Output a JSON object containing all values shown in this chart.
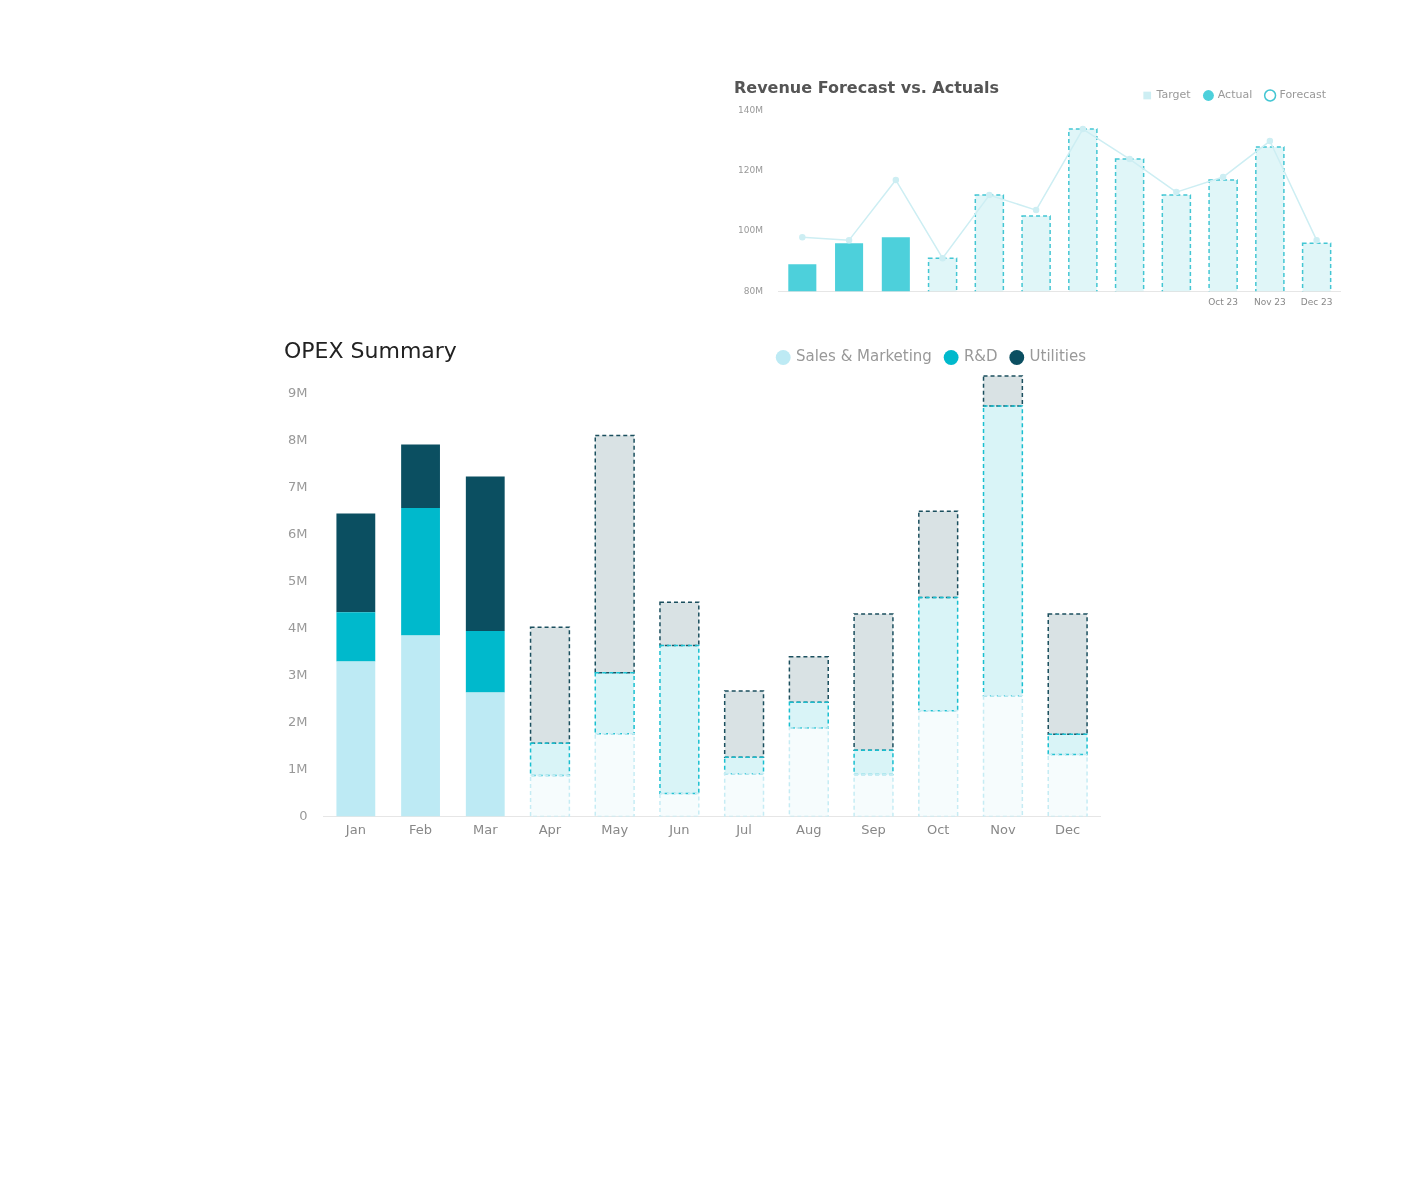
{
  "chart_data": [
    {
      "type": "bar",
      "title": "Revenue Forecast vs. Actuals",
      "categories": [
        null,
        null,
        null,
        null,
        null,
        null,
        null,
        null,
        null,
        "Oct 23",
        "Nov 23",
        "Dec 23"
      ],
      "series": [
        {
          "name": "Target",
          "type": "line",
          "color": "#cdeef3",
          "marker": "circle",
          "values": [
            98,
            97,
            117,
            91,
            112,
            107,
            134,
            124,
            113,
            118,
            130,
            97
          ]
        },
        {
          "name": "Actual",
          "color": "#4dd0db",
          "values": [
            89,
            96,
            98,
            null,
            null,
            null,
            null,
            null,
            null,
            null,
            null,
            null
          ]
        },
        {
          "name": "Forecast",
          "color": "#43c6d3",
          "line_style": "dashed",
          "values": [
            null,
            null,
            null,
            91,
            112,
            105,
            134,
            124,
            112,
            117,
            128,
            96
          ]
        }
      ],
      "ylim": [
        80,
        140
      ],
      "yticks": [
        {
          "value": 80,
          "label": "80M"
        },
        {
          "value": 100,
          "label": "100M"
        },
        {
          "value": 120,
          "label": "120M"
        },
        {
          "value": 140,
          "label": "140M"
        }
      ],
      "grid": false,
      "legend": "top right"
    },
    {
      "type": "bar",
      "title": "OPEX Summary",
      "categories": [
        "Jan",
        "Feb",
        "Mar",
        "Apr",
        "May",
        "Jun",
        "Jul",
        "Aug",
        "Sep",
        "Oct",
        "Nov",
        "Dec"
      ],
      "stacked": true,
      "series": [
        {
          "name": "Sales & Marketing",
          "color": "#bdeaf4",
          "values": [
            3.3,
            3.85,
            2.64,
            null,
            null,
            null,
            null,
            null,
            null,
            null,
            null,
            null
          ]
        },
        {
          "name": "R&D",
          "color": "#00b9cc",
          "values": [
            1.05,
            2.72,
            1.31,
            null,
            null,
            null,
            null,
            null,
            null,
            null,
            null,
            null
          ]
        },
        {
          "name": "Utilities",
          "color": "#0b4f61",
          "values": [
            2.1,
            1.35,
            3.29,
            null,
            null,
            null,
            null,
            null,
            null,
            null,
            null,
            null
          ]
        },
        {
          "color": "#c6ecf4",
          "line_style": "dashed",
          "values": [
            null,
            null,
            null,
            0.87,
            1.76,
            0.49,
            0.91,
            1.88,
            0.89,
            2.25,
            2.57,
            1.32
          ]
        },
        {
          "color": "#19bfd0",
          "line_style": "dashed",
          "values": [
            null,
            null,
            null,
            0.69,
            1.3,
            3.15,
            0.35,
            0.55,
            0.52,
            2.41,
            6.17,
            0.43
          ]
        },
        {
          "color": "#1b4f5e",
          "line_style": "dashed",
          "values": [
            null,
            null,
            null,
            2.47,
            5.05,
            0.92,
            1.41,
            0.97,
            2.9,
            1.84,
            0.64,
            2.56
          ]
        }
      ],
      "ylim": [
        0,
        9.4
      ],
      "yticks": [
        0,
        {
          "value": 1,
          "label": "1M"
        },
        {
          "value": 2,
          "label": "2M"
        },
        {
          "value": 3,
          "label": "3M"
        },
        {
          "value": 4,
          "label": "4M"
        },
        {
          "value": 5,
          "label": "5M"
        },
        {
          "value": 6,
          "label": "6M"
        },
        {
          "value": 7,
          "label": "7M"
        },
        {
          "value": 8,
          "label": "8M"
        },
        {
          "value": 9,
          "label": "9M"
        }
      ],
      "grid": false,
      "legend": "top right"
    }
  ]
}
